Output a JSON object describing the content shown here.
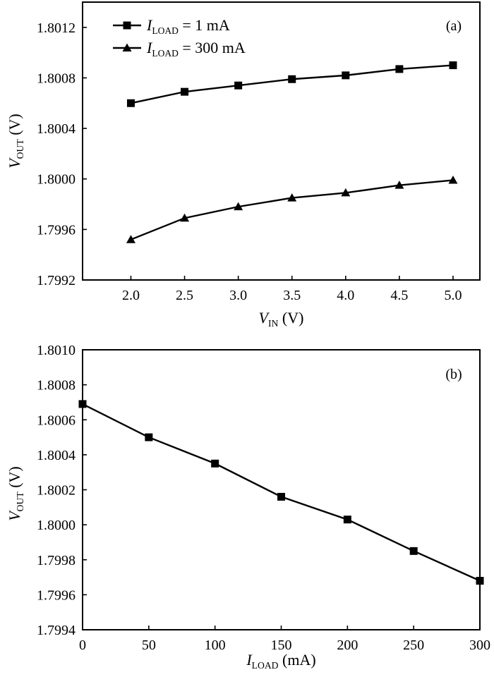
{
  "chart_data": [
    {
      "type": "line",
      "panel_label": "(a)",
      "xlabel": {
        "symbol": "V",
        "subscript": "IN",
        "unit": "(V)"
      },
      "ylabel": {
        "symbol": "V",
        "subscript": "OUT",
        "unit": "(V)"
      },
      "xlim": [
        1.55,
        5.25
      ],
      "ylim": [
        1.7992,
        1.8014
      ],
      "xticks": [
        2.0,
        2.5,
        3.0,
        3.5,
        4.0,
        4.5,
        5.0
      ],
      "xtick_labels": [
        "2.0",
        "2.5",
        "3.0",
        "3.5",
        "4.0",
        "4.5",
        "5.0"
      ],
      "yticks": [
        1.7992,
        1.7996,
        1.8,
        1.8004,
        1.8008,
        1.8012
      ],
      "ytick_labels": [
        "1.7992",
        "1.7996",
        "1.8000",
        "1.8004",
        "1.8008",
        "1.8012"
      ],
      "legend_position": "top-left",
      "grid": false,
      "x": [
        2.0,
        2.5,
        3.0,
        3.5,
        4.0,
        4.5,
        5.0
      ],
      "series": [
        {
          "legend_symbol": "I",
          "legend_subscript": "LOAD",
          "legend_text": " = 1 mA",
          "marker": "square",
          "values": [
            1.8006,
            1.80069,
            1.80074,
            1.80079,
            1.80082,
            1.80087,
            1.8009
          ]
        },
        {
          "legend_symbol": "I",
          "legend_subscript": "LOAD",
          "legend_text": " = 300 mA",
          "marker": "triangle",
          "values": [
            1.79952,
            1.79969,
            1.79978,
            1.79985,
            1.79989,
            1.79995,
            1.79999
          ]
        }
      ]
    },
    {
      "type": "line",
      "panel_label": "(b)",
      "xlabel": {
        "symbol": "I",
        "subscript": "LOAD",
        "unit": "(mA)"
      },
      "ylabel": {
        "symbol": "V",
        "subscript": "OUT",
        "unit": "(V)"
      },
      "xlim": [
        0,
        300
      ],
      "ylim": [
        1.7994,
        1.801
      ],
      "xticks": [
        0,
        50,
        100,
        150,
        200,
        250,
        300
      ],
      "xtick_labels": [
        "0",
        "50",
        "100",
        "150",
        "200",
        "250",
        "300"
      ],
      "yticks": [
        1.7994,
        1.7996,
        1.7998,
        1.8,
        1.8002,
        1.8004,
        1.8006,
        1.8008,
        1.801
      ],
      "ytick_labels": [
        "1.7994",
        "1.7996",
        "1.7998",
        "1.8000",
        "1.8002",
        "1.8004",
        "1.8006",
        "1.8008",
        "1.8010"
      ],
      "grid": false,
      "x": [
        0,
        50,
        100,
        150,
        200,
        250,
        300
      ],
      "series": [
        {
          "marker": "square",
          "values": [
            1.80069,
            1.8005,
            1.80035,
            1.80016,
            1.80003,
            1.79985,
            1.79968
          ]
        }
      ]
    }
  ]
}
